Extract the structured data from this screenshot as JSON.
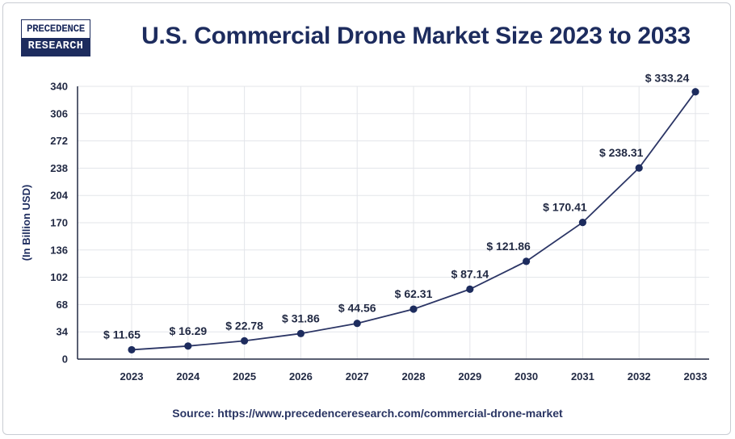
{
  "logo": {
    "line1": "PRECEDENCE",
    "line2": "RESEARCH"
  },
  "colors": {
    "brand": "#1d2c5e",
    "line": "#2b3565",
    "grid": "#e3e5ea",
    "axis": "#222a44"
  },
  "source": "Source: https://www.precedenceresearch.com/commercial-drone-market",
  "chart_data": {
    "type": "line",
    "title": "U.S. Commercial Drone Market Size 2023 to 2033",
    "xlabel": "",
    "ylabel": "(In Billion USD)",
    "categories": [
      "2023",
      "2024",
      "2025",
      "2026",
      "2027",
      "2028",
      "2029",
      "2030",
      "2031",
      "2032",
      "2033"
    ],
    "values": [
      11.65,
      16.29,
      22.78,
      31.86,
      44.56,
      62.31,
      87.14,
      121.86,
      170.41,
      238.31,
      333.24
    ],
    "data_labels": [
      "$ 11.65",
      "$ 16.29",
      "$ 22.78",
      "$ 31.86",
      "$ 44.56",
      "$ 62.31",
      "$ 87.14",
      "$ 121.86",
      "$ 170.41",
      "$ 238.31",
      "$ 333.24"
    ],
    "yticks": [
      0,
      34,
      68,
      102,
      136,
      170,
      204,
      238,
      272,
      306,
      340
    ],
    "ylim": [
      0,
      340
    ],
    "grid": true,
    "legend": "none"
  }
}
